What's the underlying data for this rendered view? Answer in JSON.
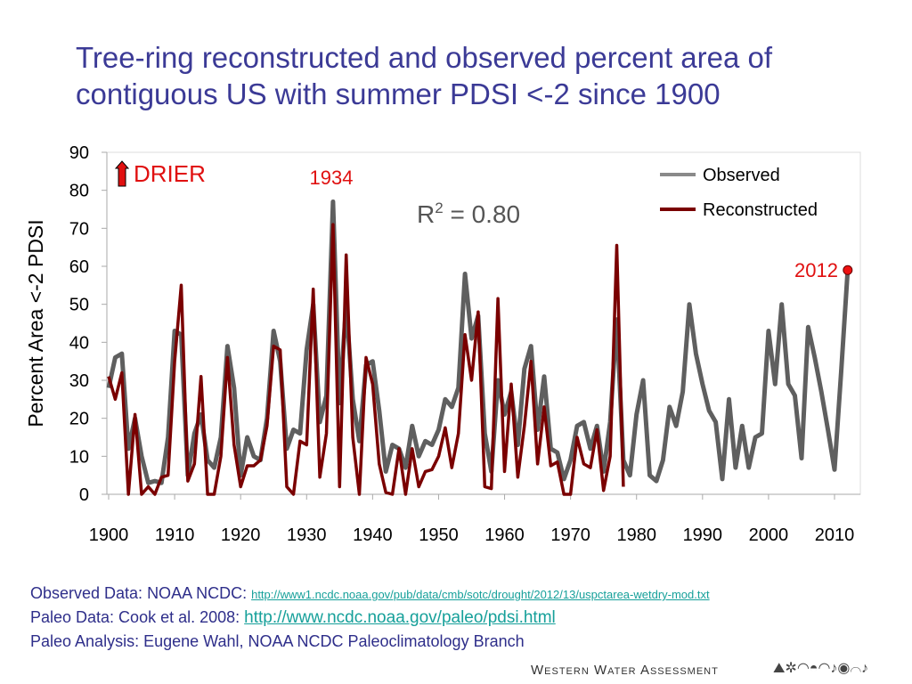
{
  "title": "Tree-ring reconstructed and observed percent area of contiguous US with summer PDSI <-2 since 1900",
  "chart_data": {
    "type": "line",
    "title": "Tree-ring reconstructed and observed percent area of contiguous US with summer PDSI <-2 since 1900",
    "ylabel": "Percent Area <-2 PDSI",
    "xlabel": "",
    "xlim": [
      1900,
      2012
    ],
    "ylim": [
      0,
      90
    ],
    "x_ticks": [
      1900,
      1910,
      1920,
      1930,
      1940,
      1950,
      1960,
      1970,
      1980,
      1990,
      2000,
      2010
    ],
    "y_ticks": [
      0,
      10,
      20,
      30,
      40,
      50,
      60,
      70,
      80,
      90
    ],
    "grid": false,
    "legend": "top-right",
    "annotations": {
      "drier": "DRIER",
      "peak_1934": "1934",
      "r2_prefix": "R",
      "r2_sup": "2",
      "r2_value": " = 0.80",
      "label_2012": "2012"
    },
    "series": [
      {
        "name": "Observed",
        "color": "#5f5f5f",
        "start_year": 1900,
        "values": [
          28,
          36,
          37,
          12,
          20,
          10,
          3,
          3.5,
          3,
          15,
          43,
          42,
          5,
          16,
          21,
          9,
          7,
          15,
          39,
          28,
          5,
          15,
          10,
          9,
          20,
          43,
          35,
          12,
          17,
          16,
          38,
          50,
          19,
          26,
          77,
          24,
          50,
          25,
          14,
          34,
          35,
          22,
          6,
          13,
          12,
          7,
          18,
          10,
          14,
          13,
          17,
          25,
          23,
          28,
          58,
          41,
          47,
          16,
          6,
          30,
          21,
          27,
          13,
          33,
          39,
          17,
          31,
          12,
          11,
          4,
          9,
          18,
          19,
          12,
          18,
          6,
          19,
          46,
          9,
          5,
          21,
          30,
          5,
          3.5,
          9,
          23,
          18,
          27,
          50,
          37,
          29,
          22,
          19,
          4,
          25,
          7,
          18,
          7,
          15,
          16,
          43,
          29,
          50,
          29,
          26,
          9.5,
          44,
          36,
          27,
          17,
          6.5,
          32,
          59
        ]
      },
      {
        "name": "Reconstructed",
        "color": "#7a0000",
        "start_year": 1900,
        "values": [
          31,
          25,
          32,
          0,
          21,
          0,
          2,
          0,
          4.5,
          5,
          35,
          55,
          3.5,
          8,
          31,
          0,
          0,
          10,
          36,
          13,
          2,
          7.5,
          7.5,
          9,
          18,
          39,
          38,
          2,
          0,
          14,
          13,
          54,
          4.5,
          16,
          71,
          2,
          63,
          15,
          0,
          36,
          29,
          8,
          0.5,
          0,
          12,
          0,
          12,
          2,
          6,
          6.5,
          10,
          17.5,
          7,
          16,
          42,
          30,
          48,
          2,
          1.5,
          51.5,
          6,
          29,
          4.5,
          18,
          35,
          8,
          23,
          7.5,
          8.5,
          0,
          0,
          15,
          8,
          7,
          17,
          1,
          10,
          65.5,
          2
        ]
      }
    ],
    "highlight_point": {
      "x": 2012,
      "y": 59,
      "color": "#ee1111"
    }
  },
  "footer": {
    "observed_label": "Observed Data: NOAA NCDC: ",
    "observed_url": "http://www1.ncdc.noaa.gov/pub/data/cmb/sotc/drought/2012/13/uspctarea-wetdry-mod.txt",
    "paleo_label": "Paleo Data: Cook et al. 2008: ",
    "paleo_url": "http://www.ncdc.noaa.gov/paleo/pdsi.html",
    "analysis": "Paleo Analysis: Eugene Wahl, NOAA NCDC Paleoclimatology Branch"
  },
  "brand": "Western Water Assessment"
}
